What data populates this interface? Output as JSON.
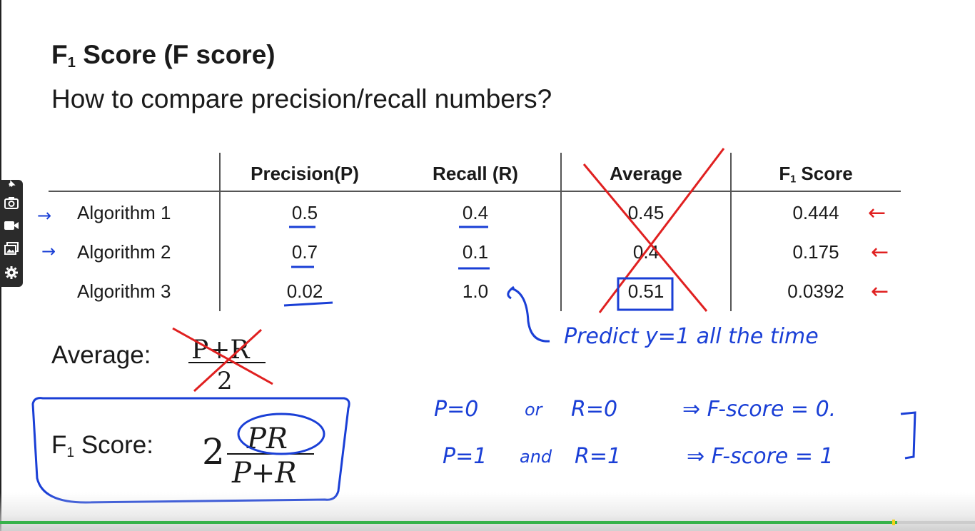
{
  "slide": {
    "title_main": "F",
    "title_sub": "1",
    "title_rest": " Score (F score)",
    "subtitle": "How to compare precision/recall numbers?"
  },
  "table": {
    "headers": [
      "Precision(P)",
      "Recall (R)",
      "Average",
      "F",
      "1",
      " Score"
    ],
    "rows": [
      {
        "name": "Algorithm 1",
        "precision": "0.5",
        "recall": "0.4",
        "average": "0.45",
        "f1": "0.444"
      },
      {
        "name": "Algorithm 2",
        "precision": "0.7",
        "recall": "0.1",
        "average": "0.4",
        "f1": "0.175"
      },
      {
        "name": "Algorithm 3",
        "precision": "0.02",
        "recall": "1.0",
        "average": "0.51",
        "f1": "0.0392"
      }
    ]
  },
  "formulas": {
    "average_label": "Average:",
    "average_num": "P+R",
    "average_den": "2",
    "f1_label_main": "F",
    "f1_label_sub": "1",
    "f1_label_rest": " Score:",
    "f1_coef": "2",
    "f1_num": "PR",
    "f1_den": "P+R"
  },
  "handwriting": {
    "predict_note": "Predict y=1 all the time",
    "line1_left": "P=0",
    "line1_mid": "or",
    "line1_right": "R=0",
    "line1_result": "⇒ F-score = 0.",
    "line2_left": "P=1",
    "line2_mid": "and",
    "line2_right": "R=1",
    "line2_result": "⇒ F-score = 1",
    "arrows_left": "→",
    "arrows_right": "←"
  },
  "video": {
    "progress_fraction": 0.92,
    "accent_color": "#36b24a"
  },
  "toolbar": {
    "icons": [
      "pin-icon",
      "camera-icon",
      "video-icon",
      "gallery-icon",
      "gear-icon"
    ]
  }
}
